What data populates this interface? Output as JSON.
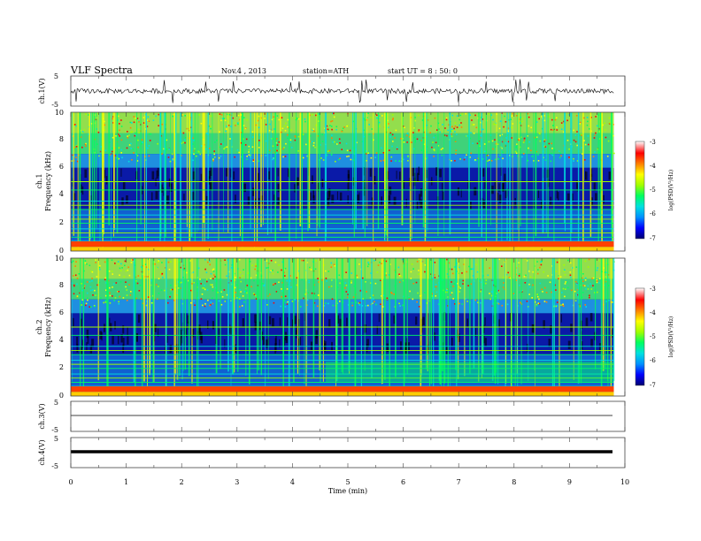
{
  "header": {
    "title": "VLF Spectra",
    "date": "Nov.4 , 2013",
    "station": "station=ATH",
    "start": "start UT = 8 : 50: 0"
  },
  "panels": {
    "ch1": {
      "label": "ch.1(V)",
      "ticks": [
        "5",
        "-5"
      ]
    },
    "spec1": {
      "label_line1": "ch.1",
      "label_line2": "Frequency (kHz)",
      "ticks": [
        "10",
        "8",
        "6",
        "4",
        "2",
        "0"
      ]
    },
    "spec2": {
      "label_line1": "ch.2",
      "label_line2": "Frequency (kHz)",
      "ticks": [
        "10",
        "8",
        "6",
        "4",
        "2",
        "0"
      ]
    },
    "ch3": {
      "label": "ch.3(V)",
      "ticks": [
        "5",
        "-5"
      ]
    },
    "ch4": {
      "label": "ch.4(V)",
      "ticks": [
        "5",
        "-5"
      ]
    }
  },
  "colorbar": {
    "label": "log(PSD(V²/Hz)",
    "ticks": [
      "-3",
      "-4",
      "-5",
      "-6",
      "-7"
    ],
    "colors": [
      "#000070",
      "#0000ff",
      "#0090ff",
      "#00e0e0",
      "#00ff60",
      "#a0ff00",
      "#ffff00",
      "#ff8000",
      "#ff0000",
      "#ffffff"
    ]
  },
  "xaxis": {
    "label": "Time (min)",
    "ticks": [
      "0",
      "1",
      "2",
      "3",
      "4",
      "5",
      "6",
      "7",
      "8",
      "9",
      "10"
    ]
  },
  "chart_data": {
    "type": "heatmap",
    "x_range_min": [
      0,
      10
    ],
    "data_end_min": 9.8,
    "spectrogram_freq_range_khz": [
      0,
      10
    ],
    "waveform_range_v": [
      -5,
      5
    ],
    "color_range_log_psd": [
      -7,
      -3
    ],
    "ch1_waveform": "noisy trace around 0 V with spikes to about ±4 V",
    "ch3_waveform": "flat near -1 V",
    "ch4_waveform": "flat thick line near -1 V",
    "spectral_features": [
      {
        "band_khz": [
          6,
          10
        ],
        "log_psd": -4.5,
        "note": "broadband sferics, yellow-red"
      },
      {
        "band_khz": [
          3,
          6
        ],
        "log_psd": -6.5,
        "note": "quiet, dark blue"
      },
      {
        "band_khz": [
          0,
          3
        ],
        "log_psd": -5.5,
        "note": "horizontal line interference"
      }
    ]
  }
}
